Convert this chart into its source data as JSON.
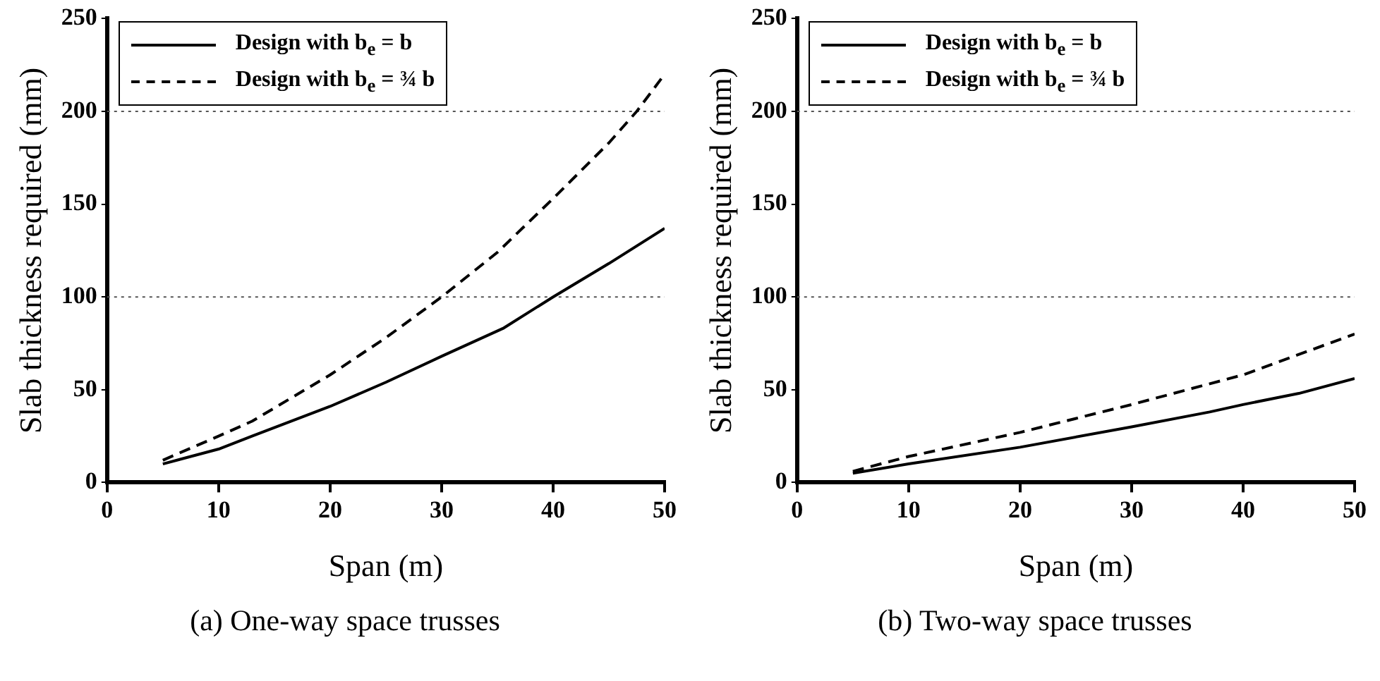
{
  "chart_data": [
    {
      "type": "line",
      "title": "(a) One-way space trusses",
      "xlabel": "Span (m)",
      "ylabel": "Slab thickness required (mm)",
      "xlim": [
        0,
        50
      ],
      "xticks": [
        0,
        10,
        20,
        30,
        40,
        50
      ],
      "ylim": [
        0,
        250
      ],
      "yticks": [
        0,
        50,
        100,
        150,
        200,
        250
      ],
      "legend": "top left",
      "marker": "none",
      "ref_lines": [
        {
          "axis": "y",
          "value": 100,
          "line_style": "dotted"
        },
        {
          "axis": "y",
          "value": 200,
          "line_style": "dotted"
        }
      ],
      "series": [
        {
          "name": "Design with b$_{e}$ = b",
          "color": "#000000",
          "line_style": "solid",
          "x": [
            5,
            10,
            13,
            20,
            25,
            30,
            35.5,
            40,
            45,
            50
          ],
          "values": [
            10,
            18,
            25,
            41,
            54,
            68,
            83,
            100,
            118,
            137
          ]
        },
        {
          "name": "Design with b$_{e}$ = ¾ b",
          "color": "#000000",
          "line_style": "dashed",
          "x": [
            5,
            10,
            13,
            20,
            25,
            30,
            35,
            40,
            45,
            47.5,
            50
          ],
          "values": [
            12,
            25,
            33,
            58,
            78,
            100,
            124,
            153,
            183,
            200,
            220
          ]
        }
      ]
    },
    {
      "type": "line",
      "title": "(b) Two-way space trusses",
      "xlabel": "Span (m)",
      "ylabel": "Slab thickness required (mm)",
      "xlim": [
        0,
        50
      ],
      "xticks": [
        0,
        10,
        20,
        30,
        40,
        50
      ],
      "ylim": [
        0,
        250
      ],
      "yticks": [
        0,
        50,
        100,
        150,
        200,
        250
      ],
      "legend": "top left",
      "marker": "none",
      "ref_lines": [
        {
          "axis": "y",
          "value": 100,
          "line_style": "dotted"
        },
        {
          "axis": "y",
          "value": 200,
          "line_style": "dotted"
        }
      ],
      "series": [
        {
          "name": "Design with b$_{e}$ = b",
          "color": "#000000",
          "line_style": "solid",
          "x": [
            5,
            10,
            20,
            30,
            37,
            40,
            45,
            50
          ],
          "values": [
            5,
            10,
            19,
            30,
            38,
            42,
            48,
            56
          ]
        },
        {
          "name": "Design with b$_{e}$ = ¾ b",
          "color": "#000000",
          "line_style": "dashed",
          "x": [
            5,
            10,
            20,
            30,
            40,
            50
          ],
          "values": [
            6,
            14,
            27,
            42,
            58,
            80
          ]
        }
      ]
    }
  ]
}
